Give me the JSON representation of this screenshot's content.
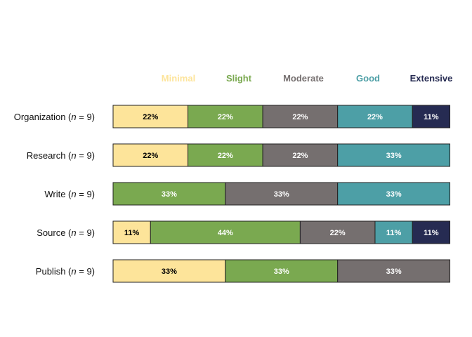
{
  "chart_data": {
    "type": "bar",
    "orientation": "horizontal",
    "stacked": true,
    "normalized_percent": true,
    "legend_position": "top-right",
    "grid": false,
    "xlim": [
      0,
      100
    ],
    "categories": [
      {
        "name": "Organization",
        "n_prefix": " (",
        "n_italic": "n",
        "n_suffix": " = 9)"
      },
      {
        "name": "Research",
        "n_prefix": " (",
        "n_italic": "n",
        "n_suffix": " = 9)"
      },
      {
        "name": "Write",
        "n_prefix": " (",
        "n_italic": "n",
        "n_suffix": " = 9)"
      },
      {
        "name": "Source",
        "n_prefix": " (",
        "n_italic": "n",
        "n_suffix": " = 9)"
      },
      {
        "name": "Publish",
        "n_prefix": " (",
        "n_italic": "n",
        "n_suffix": " = 9)"
      }
    ],
    "series": [
      {
        "name": "Minimal",
        "color": "#fde49a",
        "label_color": "#000000",
        "values": [
          22.2,
          22.2,
          0,
          11.1,
          33.3
        ],
        "labels": [
          "22%",
          "22%",
          "",
          "11%",
          "33%"
        ]
      },
      {
        "name": "Slight",
        "color": "#7aa950",
        "label_color": "#ffffff",
        "values": [
          22.2,
          22.2,
          33.3,
          44.4,
          33.3
        ],
        "labels": [
          "22%",
          "22%",
          "33%",
          "44%",
          "33%"
        ]
      },
      {
        "name": "Moderate",
        "color": "#756f6f",
        "label_color": "#ffffff",
        "values": [
          22.2,
          22.2,
          33.3,
          22.2,
          33.3
        ],
        "labels": [
          "22%",
          "22%",
          "33%",
          "22%",
          "33%"
        ]
      },
      {
        "name": "Good",
        "color": "#4d9fa6",
        "label_color": "#ffffff",
        "values": [
          22.2,
          33.3,
          33.3,
          11.1,
          0
        ],
        "labels": [
          "22%",
          "33%",
          "33%",
          "11%",
          ""
        ]
      },
      {
        "name": "Extensive",
        "color": "#262b52",
        "label_color": "#ffffff",
        "values": [
          11.1,
          0,
          0,
          11.1,
          0
        ],
        "labels": [
          "11%",
          "",
          "",
          "11%",
          ""
        ]
      }
    ]
  }
}
